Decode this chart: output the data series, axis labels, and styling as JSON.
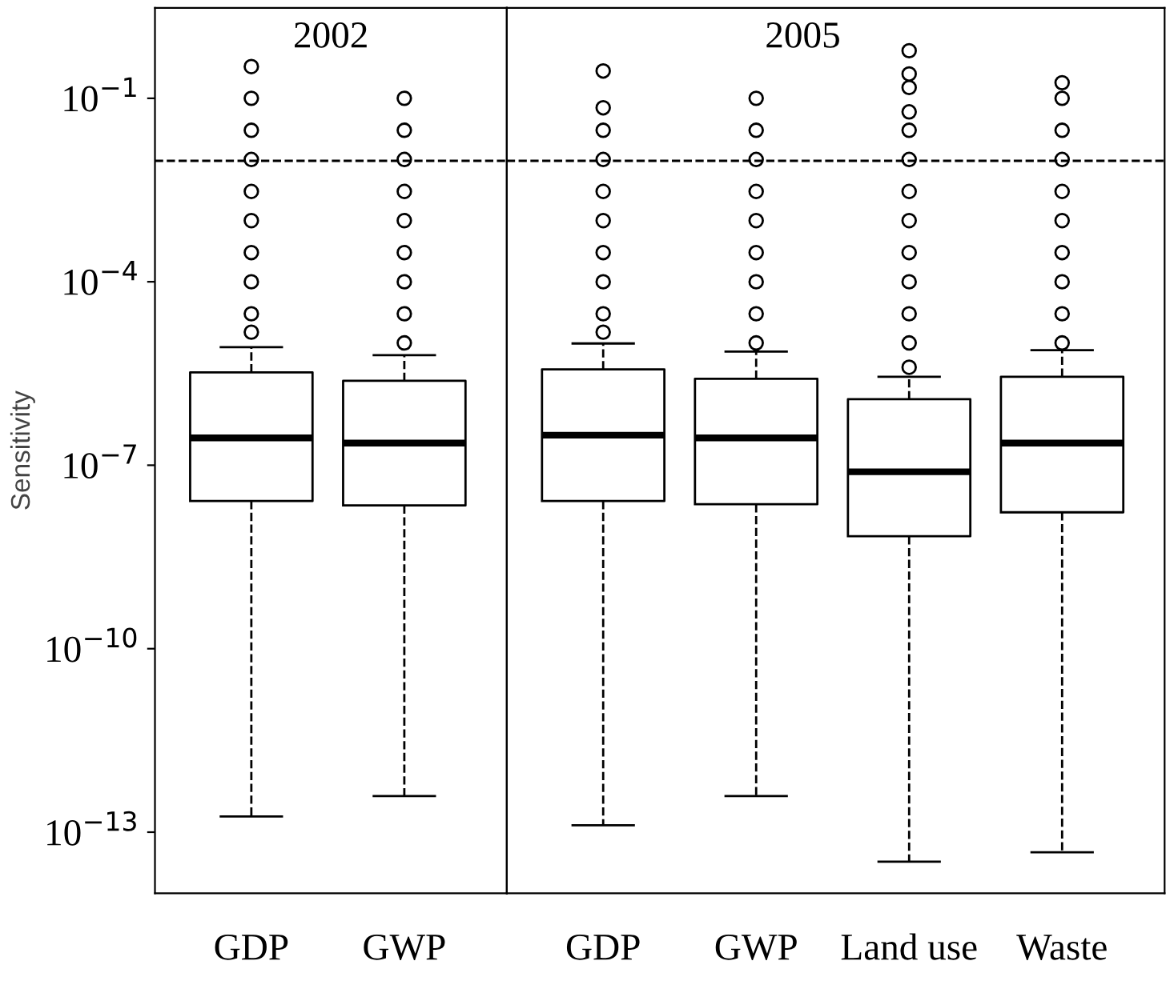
{
  "chart_data": [
    {
      "type": "box",
      "title": "2002",
      "ylabel": "Sensitivity",
      "categories": [
        "GDP",
        "GWP"
      ],
      "log": true,
      "ylim": [
        1e-14,
        3
      ],
      "yticks": [
        {
          "value": 0.1,
          "label": "10$^{−1}$"
        },
        {
          "value": 0.0001,
          "label": "10$^{−4}$"
        },
        {
          "value": 1e-07,
          "label": "10$^{−7}$"
        },
        {
          "value": 1e-10,
          "label": "10$^{−10}$"
        },
        {
          "value": 1e-13,
          "label": "10$^{−13}$"
        }
      ],
      "ref_lines": [
        {
          "axis": "y",
          "value": 0.0095,
          "line_style": "dashed",
          "color": "#000000"
        }
      ],
      "boxes": [
        {
          "low": 1.8e-13,
          "q1": 2.6e-08,
          "median": 2.8e-07,
          "q3": 3.3e-06,
          "high": 8.5e-06,
          "outliers": [
            1.5e-05,
            3e-05,
            0.0001,
            0.0003,
            0.001,
            0.003,
            0.01,
            0.03,
            0.1,
            0.33
          ]
        },
        {
          "low": 3.9e-13,
          "q1": 2.2e-08,
          "median": 2.3e-07,
          "q3": 2.4e-06,
          "high": 6.3e-06,
          "outliers": [
            1e-05,
            3e-05,
            0.0001,
            0.0003,
            0.001,
            0.003,
            0.01,
            0.03,
            0.1
          ]
        }
      ]
    },
    {
      "type": "box",
      "title": "2005",
      "categories": [
        "GDP",
        "GWP",
        "Land use",
        "Waste"
      ],
      "log": true,
      "tick_labels": "x",
      "ylim": [
        1e-14,
        3
      ],
      "ref_lines": [
        {
          "axis": "y",
          "value": 0.0095,
          "line_style": "dashed",
          "color": "#000000"
        }
      ],
      "boxes": [
        {
          "low": 1.3e-13,
          "q1": 2.6e-08,
          "median": 3.1e-07,
          "q3": 3.7e-06,
          "high": 9.8e-06,
          "outliers": [
            1.5e-05,
            3e-05,
            0.0001,
            0.0003,
            0.001,
            0.003,
            0.01,
            0.03,
            0.07,
            0.28
          ]
        },
        {
          "low": 3.9e-13,
          "q1": 2.3e-08,
          "median": 2.8e-07,
          "q3": 2.6e-06,
          "high": 7.2e-06,
          "outliers": [
            1e-05,
            3e-05,
            0.0001,
            0.0003,
            0.001,
            0.003,
            0.01,
            0.03,
            0.1
          ]
        },
        {
          "low": 3.3e-14,
          "q1": 6.9e-09,
          "median": 7.8e-08,
          "q3": 1.2e-06,
          "high": 2.8e-06,
          "outliers": [
            4e-06,
            1e-05,
            3e-05,
            0.0001,
            0.0003,
            0.001,
            0.003,
            0.01,
            0.03,
            0.06,
            0.15,
            0.25,
            0.6
          ]
        },
        {
          "low": 4.7e-14,
          "q1": 1.7e-08,
          "median": 2.3e-07,
          "q3": 2.8e-06,
          "high": 7.6e-06,
          "outliers": [
            1e-05,
            3e-05,
            0.0001,
            0.0003,
            0.001,
            0.003,
            0.01,
            0.03,
            0.1,
            0.18
          ]
        }
      ]
    }
  ]
}
